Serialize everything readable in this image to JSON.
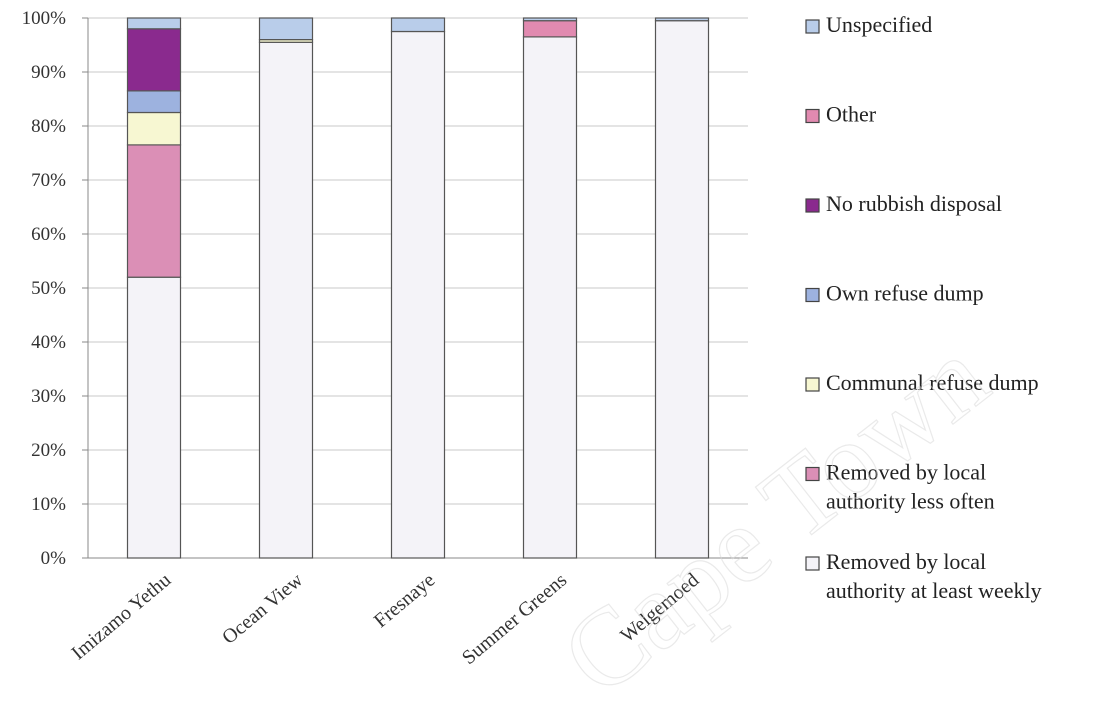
{
  "chart_data": {
    "type": "bar",
    "stacked": true,
    "percent": true,
    "categories": [
      "Imizamo Yethu",
      "Ocean View",
      "Fresnaye",
      "Summer Greens",
      "Welgemoed"
    ],
    "ylim": [
      0,
      100
    ],
    "y_ticks": [
      "0%",
      "10%",
      "20%",
      "30%",
      "40%",
      "50%",
      "60%",
      "70%",
      "80%",
      "90%",
      "100%"
    ],
    "grid": true,
    "legend_position": "right",
    "series": [
      {
        "name": "Removed by local authority at least weekly",
        "color": "#f4f3f8",
        "values": [
          52,
          95.5,
          97.5,
          96.5,
          99.5
        ]
      },
      {
        "name": "Removed by local authority less often",
        "color": "#db8fb6",
        "values": [
          24.5,
          0,
          0,
          0,
          0
        ]
      },
      {
        "name": "Communal refuse dump",
        "color": "#f7f7d2",
        "values": [
          6,
          0.5,
          0,
          0,
          0
        ]
      },
      {
        "name": "Own refuse dump",
        "color": "#9db2df",
        "values": [
          4,
          0,
          0,
          0,
          0
        ]
      },
      {
        "name": "No rubbish disposal",
        "color": "#8a2a8e",
        "values": [
          11.5,
          0,
          0,
          0,
          0
        ]
      },
      {
        "name": "Other",
        "color": "#e18ab0",
        "values": [
          0,
          0,
          0,
          3,
          0
        ]
      },
      {
        "name": "Unspecified",
        "color": "#b9cdea",
        "values": [
          2,
          4,
          2.5,
          0.5,
          0.5
        ]
      }
    ],
    "legend_order": [
      {
        "text": [
          "Unspecified"
        ],
        "color": "#b9cdea"
      },
      {
        "text": [
          "Other"
        ],
        "color": "#e18ab0"
      },
      {
        "text": [
          "No rubbish disposal"
        ],
        "color": "#8a2a8e"
      },
      {
        "text": [
          "Own refuse dump"
        ],
        "color": "#9db2df"
      },
      {
        "text": [
          "Communal refuse dump"
        ],
        "color": "#f7f7d2"
      },
      {
        "text": [
          "Removed by local",
          "authority less often"
        ],
        "color": "#db8fb6"
      },
      {
        "text": [
          "Removed by local",
          "authority at least weekly"
        ],
        "color": "#f4f3f8"
      }
    ]
  },
  "watermark": "Cape Town"
}
